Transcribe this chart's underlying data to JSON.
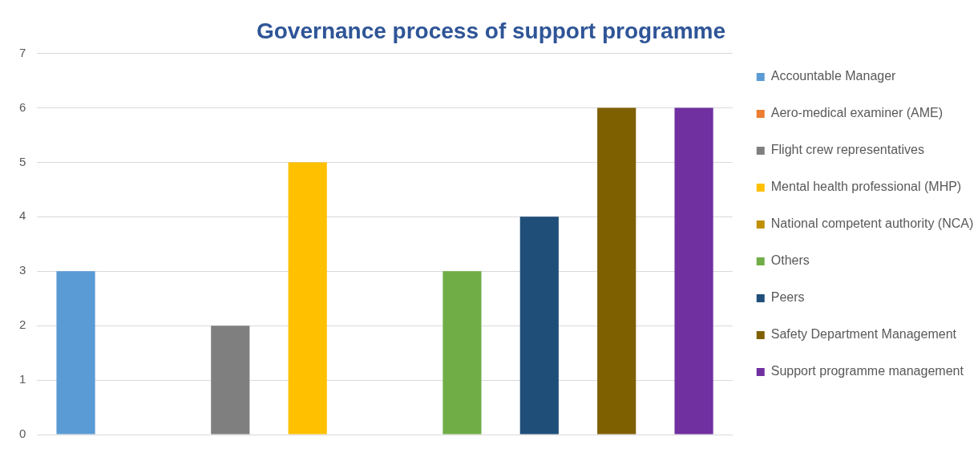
{
  "chart_data": {
    "type": "bar",
    "title": "Governance process of support programme",
    "categories": [
      null
    ],
    "series": [
      {
        "name": "Accountable Manager",
        "color": "#5b9bd5",
        "values": [
          3
        ]
      },
      {
        "name": "Aero-medical examiner (AME)",
        "color": "#ed7d31",
        "values": [
          0
        ]
      },
      {
        "name": "Flight crew representatives",
        "color": "#7f7f7f",
        "values": [
          2
        ]
      },
      {
        "name": "Mental health professional (MHP)",
        "color": "#ffc000",
        "values": [
          5
        ]
      },
      {
        "name": "National competent authority (NCA)",
        "color": "#bf9000",
        "values": [
          0
        ]
      },
      {
        "name": "Others",
        "color": "#70ad47",
        "values": [
          3
        ]
      },
      {
        "name": "Peers",
        "color": "#1f4e79",
        "values": [
          4
        ]
      },
      {
        "name": "Safety Department Management",
        "color": "#7f6000",
        "values": [
          6
        ]
      },
      {
        "name": "Support programme management",
        "color": "#7030a0",
        "values": [
          6
        ]
      }
    ],
    "ylim": [
      0,
      7
    ],
    "yticks": [
      0,
      1,
      2,
      3,
      4,
      5,
      6,
      7
    ],
    "grid": "y",
    "legend": "right",
    "tick_labels": "y"
  }
}
